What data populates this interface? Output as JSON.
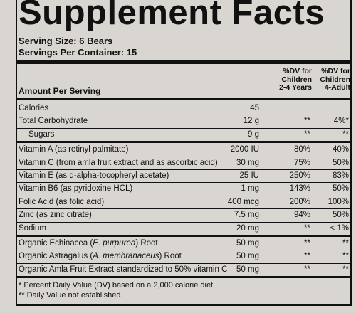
{
  "header": {
    "title": "Supplement Facts",
    "serving_size": "Serving Size: 6 Bears",
    "servings_per_container": "Servings Per Container: 15"
  },
  "table": {
    "amount_header": "Amount Per Serving",
    "dv_headers": [
      [
        "%DV for",
        "Children",
        "2-4 Years"
      ],
      [
        "%DV for",
        "Children",
        "4-Adult"
      ]
    ],
    "groups": [
      [
        {
          "name": [
            "Calories"
          ],
          "amount": "45"
        },
        {
          "name": [
            "Total Carbohydrate"
          ],
          "amount": "12 g",
          "dv": [
            "**",
            "4%*"
          ]
        },
        {
          "name": [
            "Sugars"
          ],
          "amount": "9 g",
          "dv": [
            "**",
            "**"
          ]
        }
      ],
      [
        {
          "name": [
            "Vitamin A (as retinyl palmitate)"
          ],
          "amount": "2000 IU",
          "dv": [
            "80%",
            "40%"
          ]
        },
        {
          "name": [
            "Vitamin C (from amla fruit extract and as ascorbic acid)"
          ],
          "amount": "30 mg",
          "dv": [
            "75%",
            "50%"
          ]
        },
        {
          "name": [
            "Vitamin E (as d-alpha-tocopheryl acetate)"
          ],
          "amount": "25 IU",
          "dv": [
            "250%",
            "83%"
          ]
        },
        {
          "name": [
            "Vitamin B6 (as pyridoxine HCL)"
          ],
          "amount": "1 mg",
          "dv": [
            "143%",
            "50%"
          ]
        },
        {
          "name": [
            "Folic Acid (as folic acid)"
          ],
          "amount": "400 mcg",
          "dv": [
            "200%",
            "100%"
          ]
        },
        {
          "name": [
            "Zinc (as zinc citrate)"
          ],
          "amount": "7.5 mg",
          "dv": [
            "94%",
            "50%"
          ]
        },
        {
          "name": [
            "Sodium"
          ],
          "amount": "20 mg",
          "dv": [
            "**",
            "< 1%"
          ]
        }
      ],
      [
        {
          "name": [
            "Organic Echinacea (",
            "E. purpurea",
            ") Root"
          ],
          "amount": "50 mg",
          "dv": [
            "**",
            "**"
          ]
        },
        {
          "name": [
            "Organic Astragalus (",
            "A. membranaceus",
            ") Root"
          ],
          "amount": "50 mg",
          "dv": [
            "**",
            "**"
          ]
        },
        {
          "name": [
            "Organic Amla Fruit Extract standardized to 50% vitamin C"
          ],
          "amount": "50 mg",
          "dv": [
            "**",
            "**"
          ]
        }
      ]
    ]
  },
  "footnotes": [
    "* Percent Daily Value (DV) based on a 2,000 calorie diet.",
    "** Daily Value not established."
  ]
}
